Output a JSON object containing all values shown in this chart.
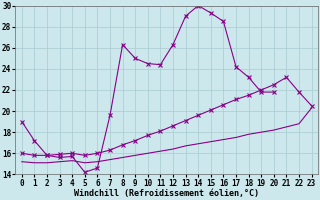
{
  "xlabel": "Windchill (Refroidissement éolien,°C)",
  "bg_color": "#cce8ec",
  "grid_color": "#a8ccd0",
  "line_color": "#880088",
  "x": [
    0,
    1,
    2,
    3,
    4,
    5,
    6,
    7,
    8,
    9,
    10,
    11,
    12,
    13,
    14,
    15,
    16,
    17,
    18,
    19,
    20,
    21,
    22,
    23
  ],
  "y1": [
    19.0,
    17.2,
    15.8,
    15.6,
    15.7,
    14.2,
    14.6,
    19.6,
    26.3,
    25.0,
    24.5,
    24.4,
    26.3,
    29.0,
    30.0,
    29.3,
    28.5,
    24.2,
    23.2,
    21.8,
    21.8,
    null,
    null,
    null
  ],
  "y2": [
    null,
    null,
    null,
    null,
    null,
    null,
    null,
    null,
    null,
    null,
    24.5,
    null,
    null,
    null,
    null,
    null,
    null,
    null,
    null,
    null,
    null,
    23.2,
    21.8,
    null
  ],
  "line1_x": [
    0,
    1,
    2,
    3,
    4,
    5,
    6,
    7,
    8,
    9,
    10,
    11,
    12,
    13,
    14,
    15,
    16,
    17,
    18,
    19,
    20
  ],
  "line1_y": [
    19.0,
    17.2,
    15.8,
    15.6,
    15.7,
    14.2,
    14.6,
    19.6,
    26.3,
    25.0,
    24.5,
    24.4,
    26.3,
    29.0,
    30.0,
    29.3,
    28.5,
    24.2,
    23.2,
    21.8,
    21.8
  ],
  "line2_x": [
    0,
    1,
    2,
    3,
    4,
    5,
    6,
    7,
    8,
    9,
    10,
    11,
    12,
    13,
    14,
    15,
    16,
    17,
    18,
    19,
    20,
    21,
    22,
    23
  ],
  "line2_y": [
    16.0,
    15.8,
    15.8,
    15.9,
    16.0,
    15.8,
    16.0,
    16.3,
    16.8,
    17.2,
    17.7,
    18.1,
    18.6,
    19.1,
    19.6,
    20.1,
    20.6,
    21.1,
    21.5,
    22.0,
    22.5,
    23.2,
    21.8,
    20.5
  ],
  "line3_x": [
    0,
    1,
    2,
    3,
    4,
    5,
    6,
    7,
    8,
    9,
    10,
    11,
    12,
    13,
    14,
    15,
    16,
    17,
    18,
    19,
    20,
    21,
    22,
    23
  ],
  "line3_y": [
    15.2,
    15.1,
    15.1,
    15.2,
    15.3,
    15.1,
    15.2,
    15.4,
    15.6,
    15.8,
    16.0,
    16.2,
    16.4,
    16.7,
    16.9,
    17.1,
    17.3,
    17.5,
    17.8,
    18.0,
    18.2,
    18.5,
    18.8,
    20.3
  ],
  "ylim": [
    14,
    30
  ],
  "yticks": [
    14,
    16,
    18,
    20,
    22,
    24,
    26,
    28,
    30
  ],
  "xticks": [
    0,
    1,
    2,
    3,
    4,
    5,
    6,
    7,
    8,
    9,
    10,
    11,
    12,
    13,
    14,
    15,
    16,
    17,
    18,
    19,
    20,
    21,
    22,
    23
  ],
  "label_fontsize": 6,
  "tick_fontsize": 5.5
}
